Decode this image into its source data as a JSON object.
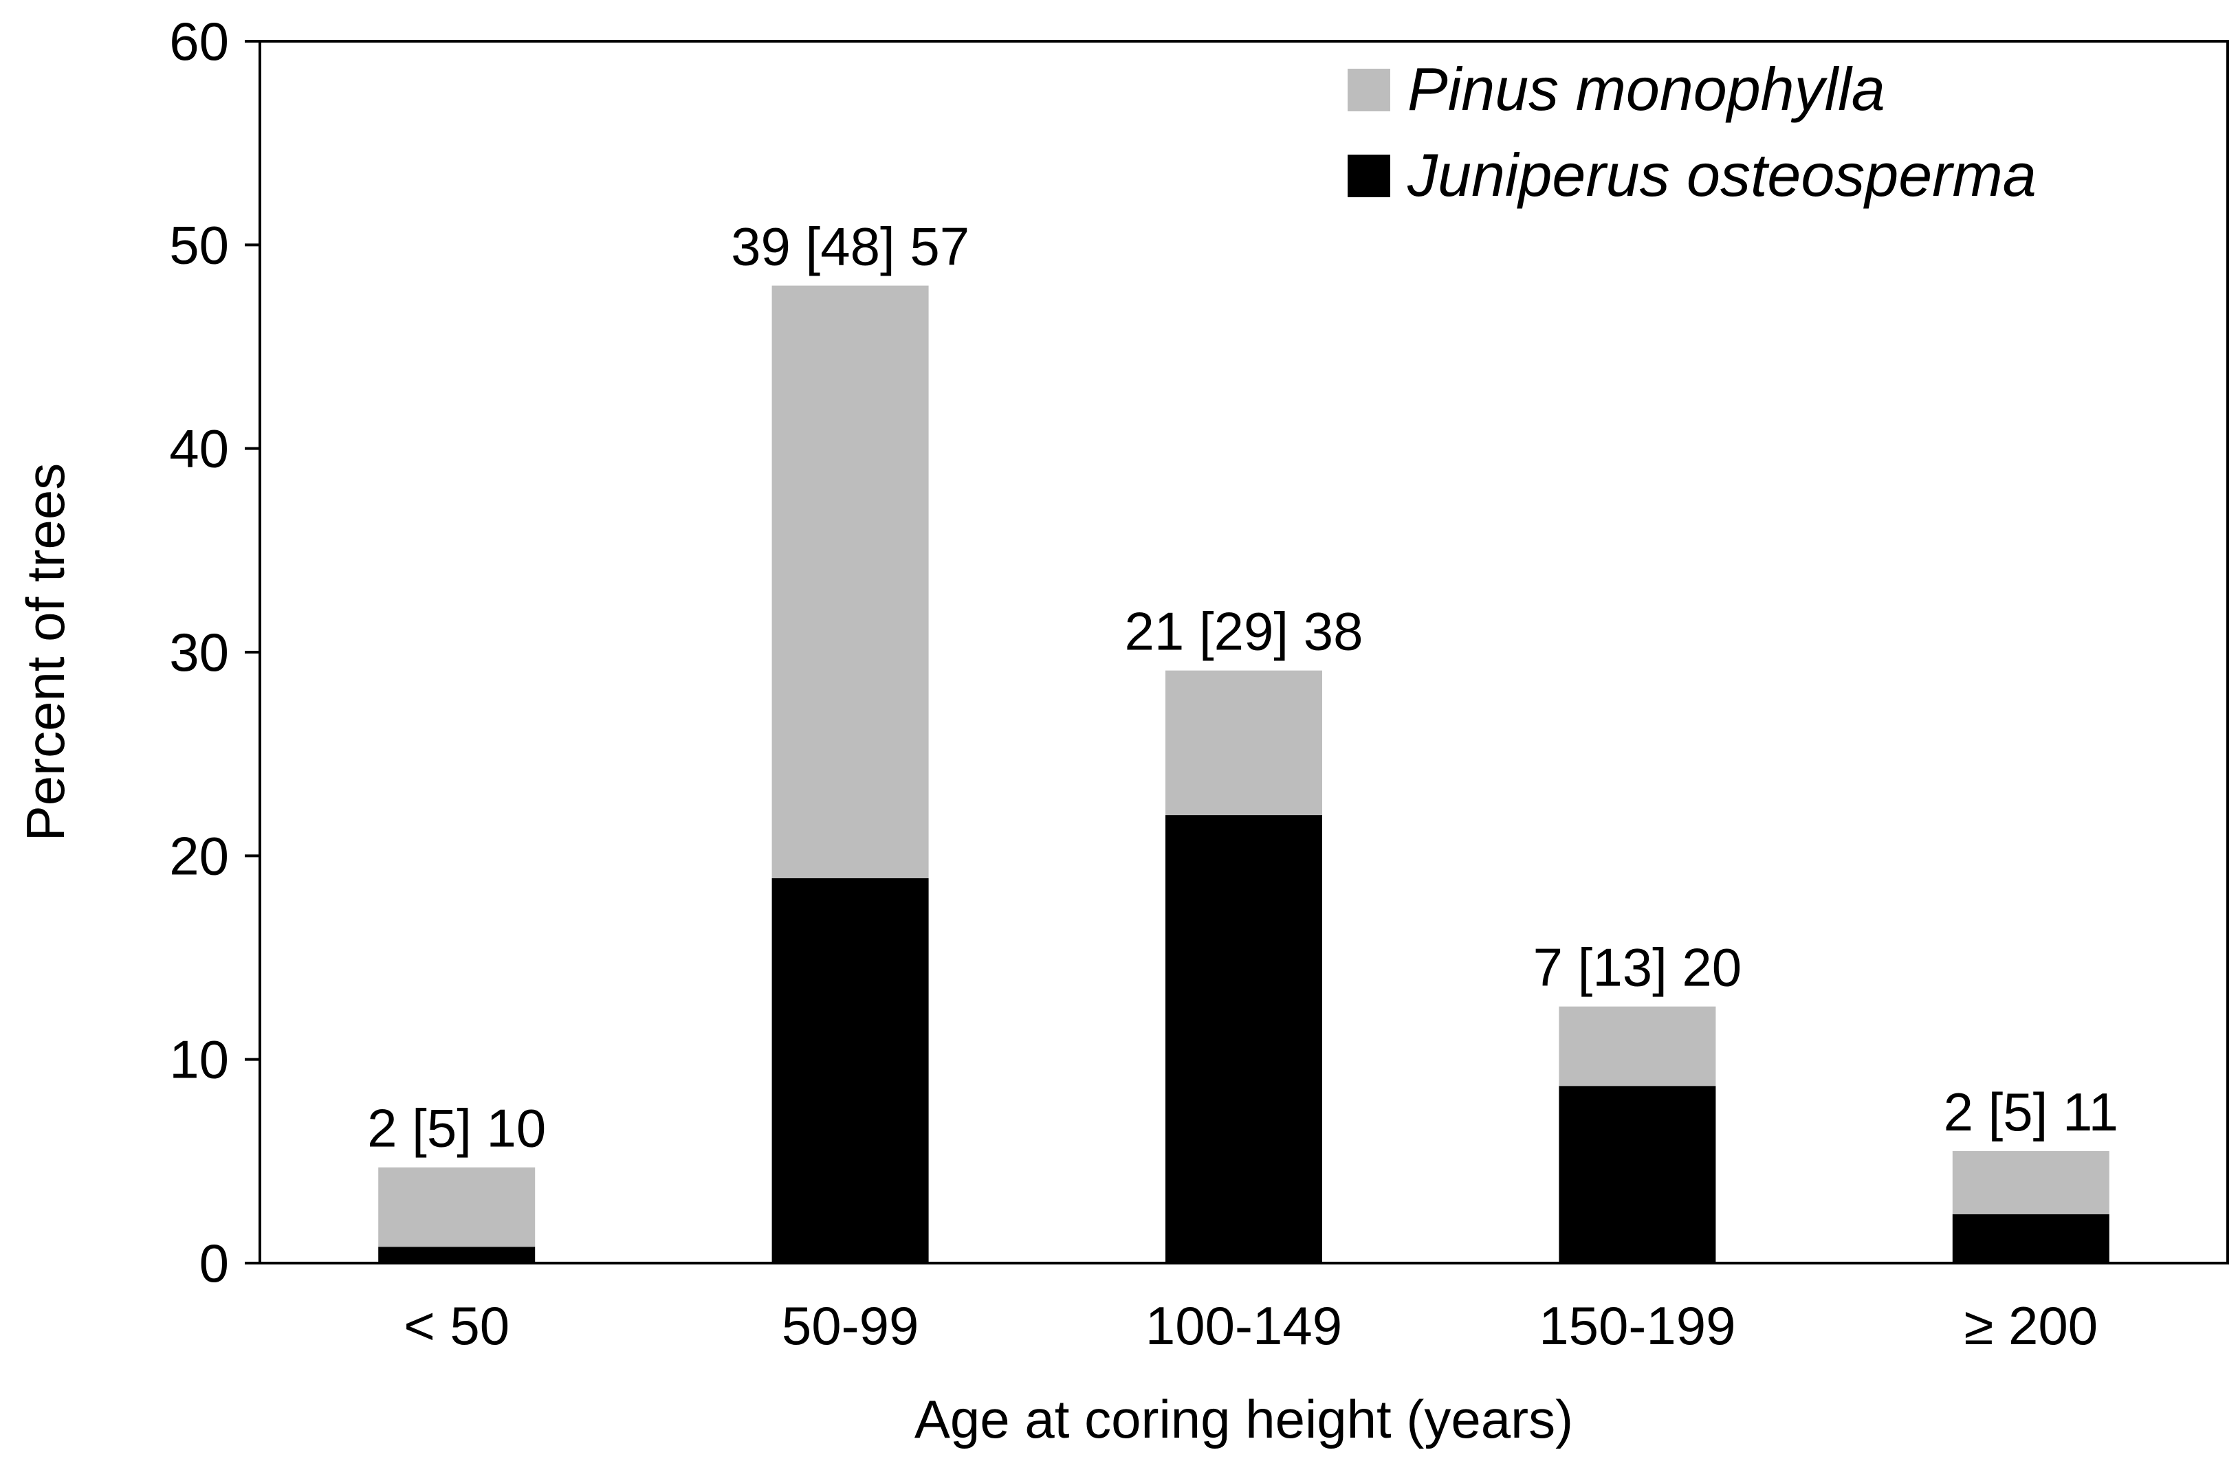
{
  "chart_data": {
    "type": "bar",
    "stacked": true,
    "categories": [
      "< 50",
      "50-99",
      "100-149",
      "150-199",
      "≥ 200"
    ],
    "series": [
      {
        "name": "Juniperus osteosperma",
        "values": [
          0.8,
          18.9,
          22.0,
          8.7,
          2.4
        ],
        "color": "#000000"
      },
      {
        "name": "Pinus monophylla",
        "values": [
          3.9,
          29.1,
          7.1,
          3.9,
          3.1
        ],
        "color": "#bdbdbd"
      }
    ],
    "bar_labels": [
      "2 [5] 10",
      "39 [48] 57",
      "21 [29] 38",
      "7 [13] 20",
      "2 [5] 11"
    ],
    "xlabel": "Age at coring height (years)",
    "ylabel": "Percent of trees",
    "ylim": [
      0,
      60
    ],
    "yticks": [
      0,
      10,
      20,
      30,
      40,
      50,
      60
    ],
    "grid": false,
    "legend_position": "top-right",
    "legend_order": [
      "Pinus monophylla",
      "Juniperus osteosperma"
    ]
  }
}
